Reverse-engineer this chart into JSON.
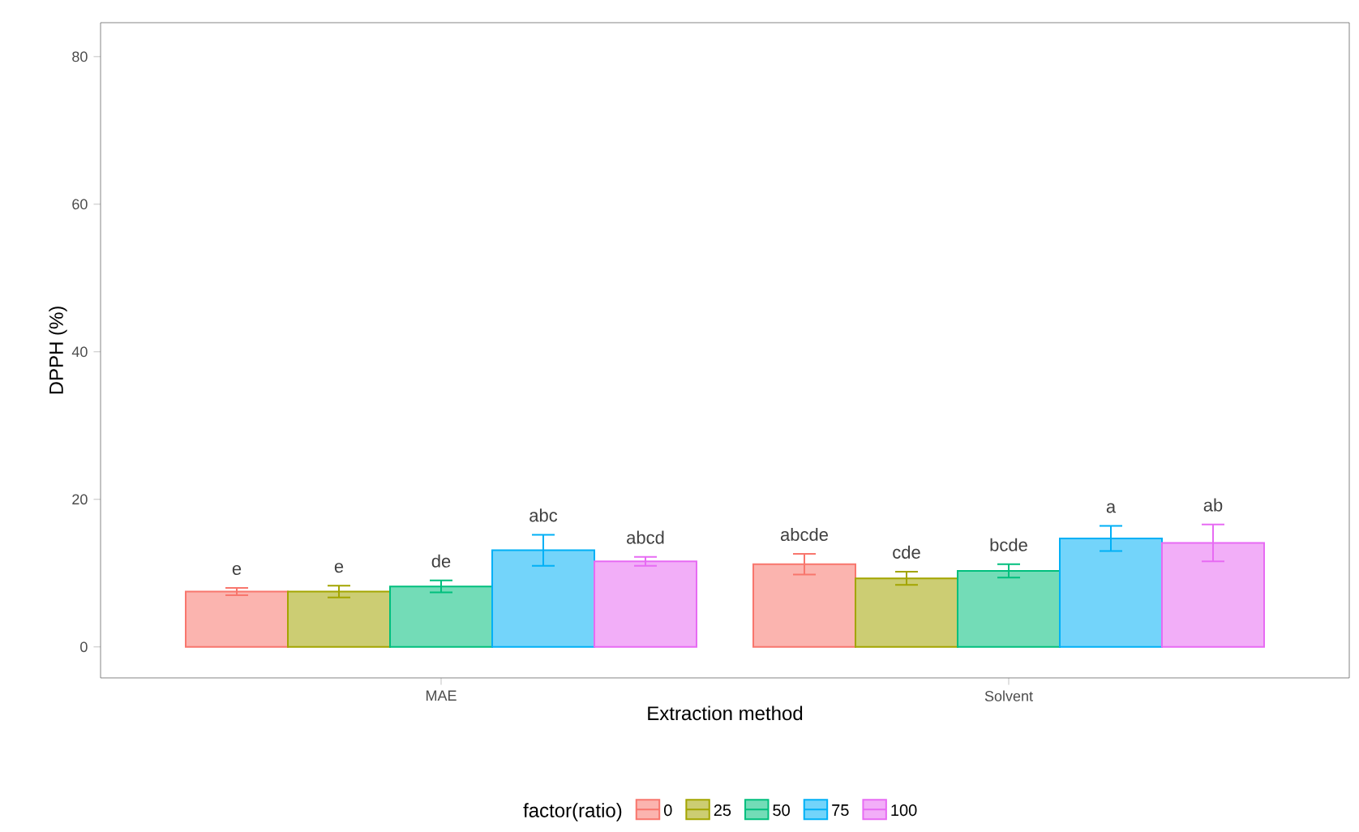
{
  "chart_data": {
    "type": "bar",
    "xlabel": "Extraction method",
    "ylabel": "DPPH (%)",
    "legend_title": "factor(ratio)",
    "categories": [
      "MAE",
      "Solvent"
    ],
    "series": [
      {
        "name": "0",
        "color": "#f8766d",
        "values": [
          7.5,
          11.2
        ],
        "errors": [
          0.5,
          1.4
        ],
        "value_labels": [
          "e",
          "abcde"
        ]
      },
      {
        "name": "25",
        "color": "#a3a500",
        "values": [
          7.5,
          9.3
        ],
        "errors": [
          0.8,
          0.9
        ],
        "value_labels": [
          "e",
          "cde"
        ]
      },
      {
        "name": "50",
        "color": "#00bf7d",
        "values": [
          8.2,
          10.3
        ],
        "errors": [
          0.8,
          0.9
        ],
        "value_labels": [
          "de",
          "bcde"
        ]
      },
      {
        "name": "75",
        "color": "#00b0f6",
        "values": [
          13.1,
          14.7
        ],
        "errors": [
          2.1,
          1.7
        ],
        "value_labels": [
          "abc",
          "a"
        ]
      },
      {
        "name": "100",
        "color": "#e76bf3",
        "values": [
          11.6,
          14.1
        ],
        "errors": [
          0.6,
          2.5
        ],
        "value_labels": [
          "abcd",
          "ab"
        ]
      }
    ],
    "ylim": [
      -4.2,
      84.6
    ],
    "yticks": [
      0,
      20,
      40,
      60,
      80
    ],
    "grid": false,
    "legend": "bottom"
  }
}
